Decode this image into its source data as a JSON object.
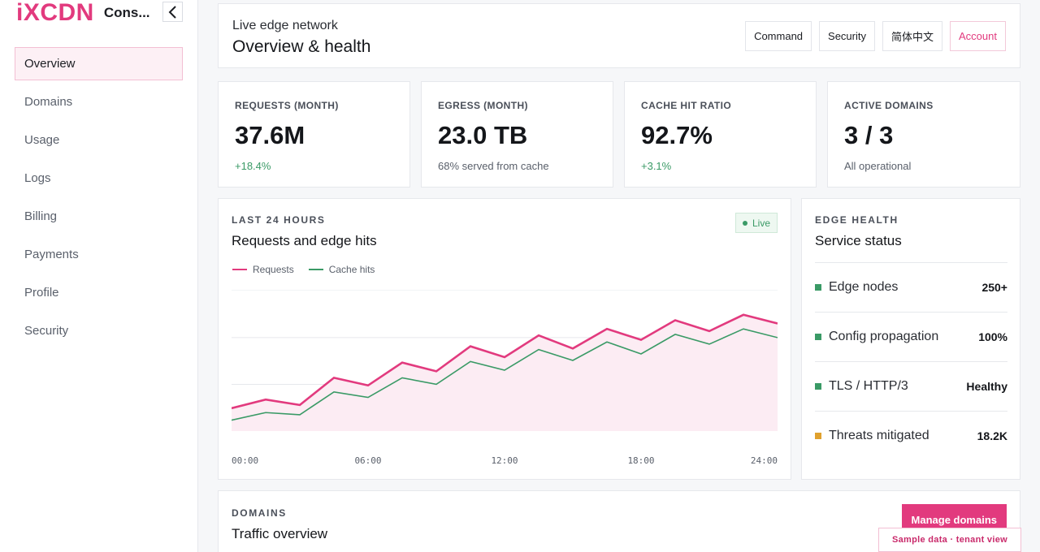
{
  "brand": {
    "logo": "iXCDN",
    "name": "Cons..."
  },
  "sidebar": {
    "items": [
      {
        "label": "Overview",
        "active": true
      },
      {
        "label": "Domains"
      },
      {
        "label": "Usage"
      },
      {
        "label": "Logs"
      },
      {
        "label": "Billing"
      },
      {
        "label": "Payments"
      },
      {
        "label": "Profile"
      },
      {
        "label": "Security"
      }
    ],
    "collapse_icon": "chevron-left-icon"
  },
  "header": {
    "subtitle": "Live edge network",
    "title": "Overview & health",
    "actions": {
      "command": "Command",
      "security": "Security",
      "language": "简体中文",
      "account": "Account"
    }
  },
  "stats": [
    {
      "label": "REQUESTS (MONTH)",
      "value": "37.6M",
      "note": "+18.4%"
    },
    {
      "label": "EGRESS (MONTH)",
      "value": "23.0 TB",
      "note": "68% served from cache"
    },
    {
      "label": "CACHE HIT RATIO",
      "value": "92.7%",
      "note": "+3.1%"
    },
    {
      "label": "ACTIVE DOMAINS",
      "value": "3 / 3",
      "note": "All operational"
    }
  ],
  "chart": {
    "eyebrow": "LAST 24 HOURS",
    "title": "Requests and edge hits",
    "badge": "Live"
  },
  "chart_data": {
    "type": "line",
    "x": [
      "00:00",
      "01:30",
      "03:00",
      "04:30",
      "06:00",
      "07:30",
      "09:00",
      "10:30",
      "12:00",
      "13:30",
      "15:00",
      "16:30",
      "18:00",
      "19:30",
      "21:00",
      "22:30",
      "24:00"
    ],
    "x_ticks": [
      "00:00",
      "06:00",
      "12:00",
      "18:00",
      "24:00"
    ],
    "series": [
      {
        "name": "Requests",
        "color": "#e23a7e",
        "values": [
          21,
          29,
          24,
          49,
          42,
          63,
          55,
          78,
          68,
          88,
          76,
          94,
          84,
          102,
          92,
          107,
          99
        ]
      },
      {
        "name": "Cache hits",
        "color": "#3a9a66",
        "values": [
          10,
          17,
          15,
          36,
          31,
          49,
          43,
          64,
          56,
          75,
          65,
          82,
          71,
          89,
          80,
          94,
          86
        ]
      }
    ],
    "ylim": [
      0,
      130
    ],
    "grid": true,
    "fill_under": "Requests",
    "legend": "top-left"
  },
  "health": {
    "eyebrow": "EDGE HEALTH",
    "title": "Service status",
    "rows": [
      {
        "label": "Edge nodes",
        "value": "250+",
        "color": "#3a9a66"
      },
      {
        "label": "Config propagation",
        "value": "100%",
        "color": "#3a9a66"
      },
      {
        "label": "TLS / HTTP/3",
        "value": "Healthy",
        "color": "#3a9a66"
      },
      {
        "label": "Threats mitigated",
        "value": "18.2K",
        "color": "#e0a12e"
      }
    ]
  },
  "domains": {
    "eyebrow": "DOMAINS",
    "title": "Traffic overview",
    "manage": "Manage domains"
  },
  "sample_tag": "Sample data · tenant view"
}
